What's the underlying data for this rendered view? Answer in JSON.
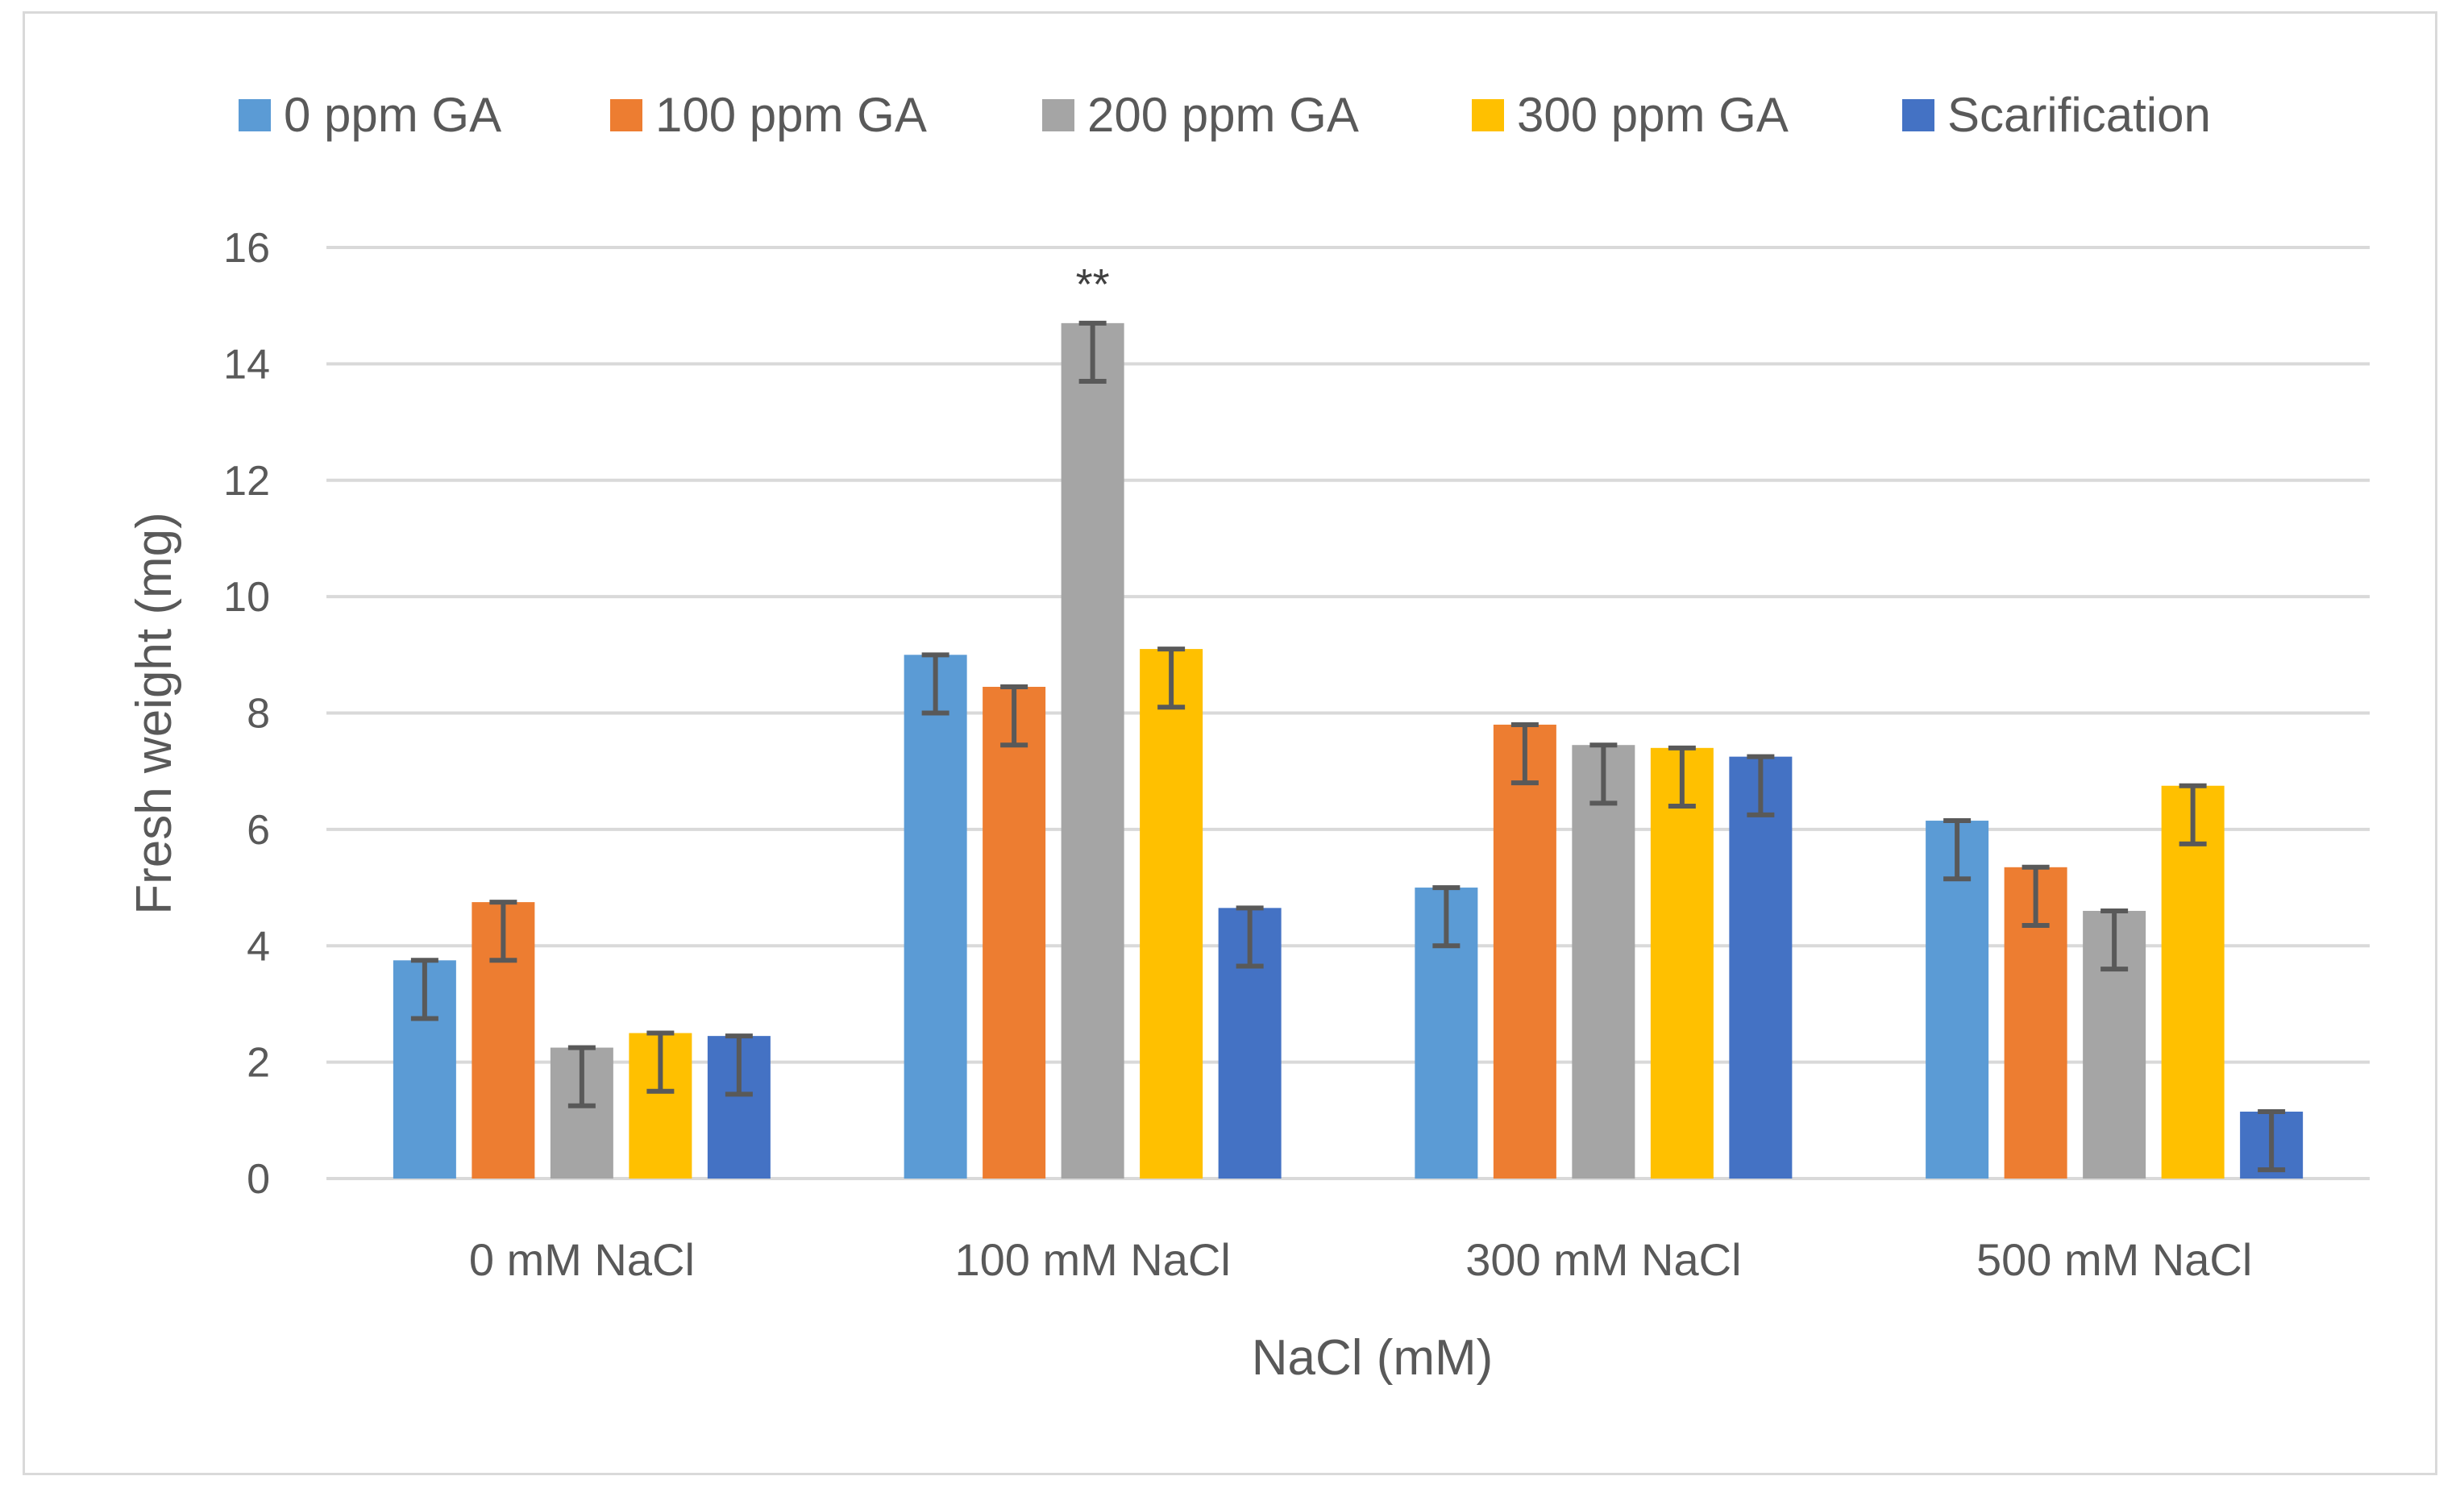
{
  "chart_data": {
    "type": "bar",
    "title": "",
    "xlabel": "NaCl (mM)",
    "ylabel": "Fresh weight (mg)",
    "ylim": [
      0,
      16
    ],
    "ytick_step": 2,
    "yticks": [
      "0",
      "2",
      "4",
      "6",
      "8",
      "10",
      "12",
      "14",
      "16"
    ],
    "grid": true,
    "legend_position": "top",
    "categories": [
      "0 mM NaCl",
      "100 mM NaCl",
      "300 mM NaCl",
      "500 mM NaCl"
    ],
    "series": [
      {
        "name": "0 ppm GA",
        "color": "#5b9bd5",
        "values": [
          3.75,
          9.0,
          5.0,
          6.15
        ],
        "errors": [
          1.0,
          1.0,
          1.0,
          1.0
        ]
      },
      {
        "name": "100 ppm GA",
        "color": "#ed7d31",
        "values": [
          4.75,
          8.45,
          7.8,
          5.35
        ],
        "errors": [
          1.0,
          1.0,
          1.0,
          1.0
        ]
      },
      {
        "name": "200 ppm GA",
        "color": "#a5a5a5",
        "values": [
          2.25,
          14.7,
          7.45,
          4.6
        ],
        "errors": [
          1.0,
          1.0,
          1.0,
          1.0
        ]
      },
      {
        "name": "300 ppm GA",
        "color": "#ffc000",
        "values": [
          2.5,
          9.1,
          7.4,
          6.75
        ],
        "errors": [
          1.0,
          1.0,
          1.0,
          1.0
        ]
      },
      {
        "name": "Scarification",
        "color": "#4472c4",
        "values": [
          2.45,
          4.65,
          7.25,
          1.15
        ],
        "errors": [
          1.0,
          1.0,
          1.0,
          1.0
        ]
      }
    ],
    "annotations": [
      {
        "text": "**",
        "category_index": 1,
        "series_index": 2
      }
    ]
  }
}
